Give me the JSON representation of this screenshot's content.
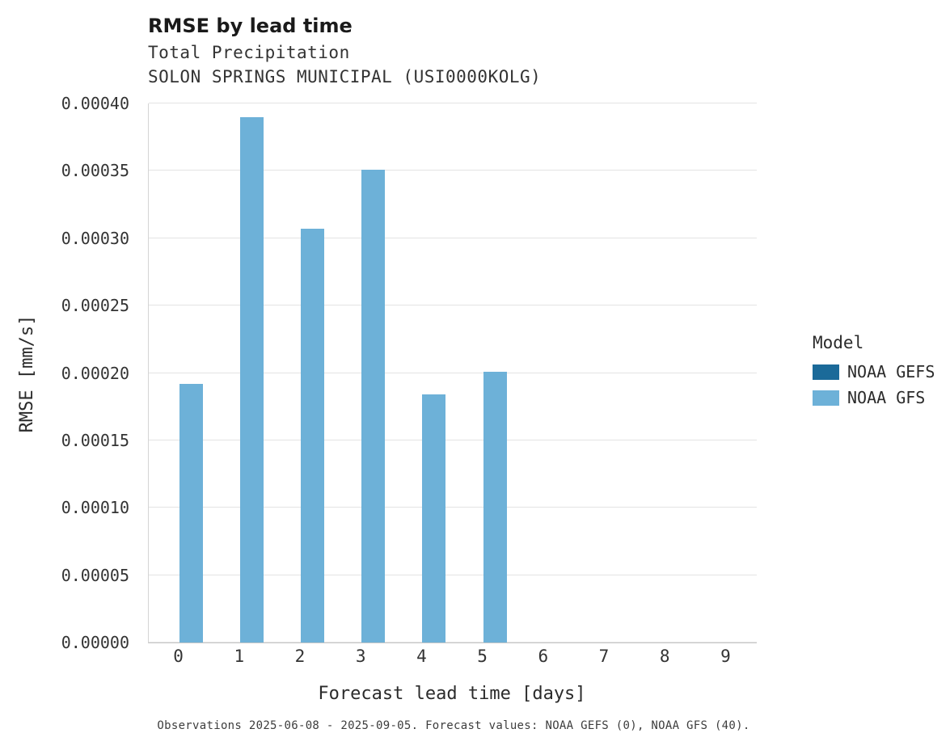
{
  "title": "RMSE by lead time",
  "subtitle_line1": "Total Precipitation",
  "subtitle_line2": "SOLON SPRINGS MUNICIPAL (USI0000KOLG)",
  "caption": "Observations 2025-06-08 - 2025-09-05. Forecast values: NOAA GEFS (0), NOAA GFS (40).",
  "legend": {
    "title": "Model",
    "entries": [
      {
        "label": "NOAA GEFS",
        "color": "#1b6a99"
      },
      {
        "label": "NOAA GFS",
        "color": "#6db1d8"
      }
    ]
  },
  "chart_data": {
    "type": "bar",
    "title": "RMSE by lead time",
    "xlabel": "Forecast lead time [days]",
    "ylabel": "RMSE [mm/s]",
    "categories": [
      "0",
      "1",
      "2",
      "3",
      "4",
      "5",
      "6",
      "7",
      "8",
      "9"
    ],
    "series": [
      {
        "name": "NOAA GEFS",
        "color": "#1b6a99",
        "values": [
          null,
          null,
          null,
          null,
          null,
          null,
          null,
          null,
          null,
          null
        ]
      },
      {
        "name": "NOAA GFS",
        "color": "#6db1d8",
        "values": [
          0.000192,
          0.00039,
          0.000307,
          0.000351,
          0.000184,
          0.000201,
          null,
          null,
          null,
          null
        ]
      }
    ],
    "ylim": [
      0,
      0.0004
    ],
    "yticks": [
      0,
      5e-05,
      0.0001,
      0.00015,
      0.0002,
      0.00025,
      0.0003,
      0.00035,
      0.0004
    ],
    "ytick_labels": [
      "0.00000",
      "0.00005",
      "0.00010",
      "0.00015",
      "0.00020",
      "0.00025",
      "0.00030",
      "0.00035",
      "0.00040"
    ],
    "grid": true,
    "legend_position": "right"
  }
}
